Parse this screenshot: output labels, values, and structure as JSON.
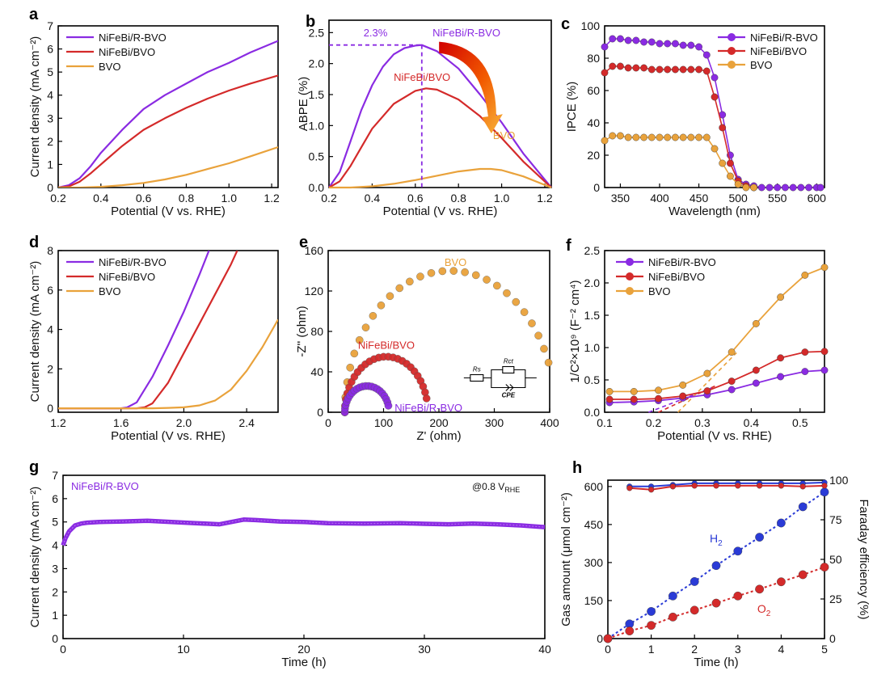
{
  "colors": {
    "purple": "#8a2be2",
    "red": "#d42a2a",
    "orange": "#e9a23b",
    "blue": "#2a3bd6"
  },
  "chart_data": [
    {
      "panel": "a",
      "type": "line",
      "xlabel": "Potential (V vs. RHE)",
      "ylabel": "Current density (mA cm⁻²)",
      "xlim": [
        0.2,
        1.23
      ],
      "ylim": [
        0,
        7
      ],
      "xticks": [
        0.2,
        0.4,
        0.6,
        0.8,
        1.0,
        1.2
      ],
      "yticks": [
        0,
        1,
        2,
        3,
        4,
        5,
        6,
        7
      ],
      "legend_position": "top-left",
      "series": [
        {
          "name": "NiFeBi/R-BVO",
          "color": "purple",
          "x": [
            0.2,
            0.25,
            0.3,
            0.35,
            0.4,
            0.5,
            0.6,
            0.7,
            0.8,
            0.9,
            1.0,
            1.1,
            1.23
          ],
          "y": [
            0,
            0.1,
            0.4,
            0.9,
            1.5,
            2.5,
            3.4,
            4.0,
            4.5,
            5.0,
            5.4,
            5.85,
            6.35
          ]
        },
        {
          "name": "NiFeBi/BVO",
          "color": "red",
          "x": [
            0.2,
            0.25,
            0.3,
            0.35,
            0.4,
            0.5,
            0.6,
            0.7,
            0.8,
            0.9,
            1.0,
            1.1,
            1.23
          ],
          "y": [
            0,
            0.05,
            0.25,
            0.6,
            1.0,
            1.8,
            2.5,
            3.0,
            3.45,
            3.85,
            4.2,
            4.5,
            4.85
          ]
        },
        {
          "name": "BVO",
          "color": "orange",
          "x": [
            0.2,
            0.3,
            0.4,
            0.5,
            0.6,
            0.7,
            0.8,
            0.9,
            1.0,
            1.1,
            1.23
          ],
          "y": [
            0,
            0,
            0.03,
            0.1,
            0.2,
            0.35,
            0.55,
            0.8,
            1.05,
            1.35,
            1.75
          ]
        }
      ]
    },
    {
      "panel": "b",
      "type": "line",
      "xlabel": "Potential (V vs. RHE)",
      "ylabel": "ABPE (%)",
      "xlim": [
        0.2,
        1.23
      ],
      "ylim": [
        0,
        2.7
      ],
      "xticks": [
        0.2,
        0.4,
        0.6,
        0.8,
        1.0,
        1.2
      ],
      "yticks": [
        0.0,
        0.5,
        1.0,
        1.5,
        2.0,
        2.5
      ],
      "annotations": {
        "peak": "2.3%",
        "label_top": "NiFeBi/R-BVO",
        "label_mid": "NiFeBi/BVO",
        "label_low": "BVO"
      },
      "peak_point": {
        "x": 0.63,
        "y": 2.3
      },
      "series": [
        {
          "name": "NiFeBi/R-BVO",
          "color": "purple",
          "x": [
            0.2,
            0.25,
            0.3,
            0.35,
            0.4,
            0.45,
            0.5,
            0.55,
            0.6,
            0.63,
            0.7,
            0.8,
            0.9,
            1.0,
            1.1,
            1.23
          ],
          "y": [
            0,
            0.25,
            0.75,
            1.25,
            1.65,
            1.95,
            2.15,
            2.25,
            2.29,
            2.3,
            2.2,
            1.92,
            1.5,
            1.05,
            0.55,
            0
          ]
        },
        {
          "name": "NiFeBi/BVO",
          "color": "red",
          "x": [
            0.2,
            0.25,
            0.3,
            0.35,
            0.4,
            0.5,
            0.6,
            0.65,
            0.7,
            0.8,
            0.9,
            1.0,
            1.1,
            1.23
          ],
          "y": [
            0,
            0.1,
            0.35,
            0.65,
            0.95,
            1.35,
            1.56,
            1.6,
            1.58,
            1.42,
            1.15,
            0.8,
            0.42,
            0
          ]
        },
        {
          "name": "BVO",
          "color": "orange",
          "x": [
            0.2,
            0.3,
            0.4,
            0.5,
            0.6,
            0.7,
            0.8,
            0.9,
            0.95,
            1.0,
            1.1,
            1.23
          ],
          "y": [
            0,
            0,
            0.02,
            0.06,
            0.12,
            0.19,
            0.26,
            0.3,
            0.3,
            0.28,
            0.18,
            0
          ]
        }
      ]
    },
    {
      "panel": "c",
      "type": "line",
      "xlabel": "Wavelength (nm)",
      "ylabel": "IPCE (%)",
      "xlim": [
        330,
        610
      ],
      "ylim": [
        0,
        100
      ],
      "xticks": [
        350,
        400,
        450,
        500,
        550,
        600
      ],
      "yticks": [
        0,
        20,
        40,
        60,
        80,
        100
      ],
      "legend_position": "top-right",
      "series": [
        {
          "name": "NiFeBi/R-BVO",
          "color": "purple",
          "markers": true,
          "x": [
            330,
            340,
            350,
            360,
            370,
            380,
            390,
            400,
            410,
            420,
            430,
            440,
            450,
            460,
            470,
            480,
            490,
            500,
            510,
            520,
            530,
            540,
            550,
            560,
            570,
            580,
            590,
            600,
            605
          ],
          "y": [
            87,
            92,
            92,
            91,
            91,
            90,
            90,
            89,
            89,
            89,
            88,
            88,
            87,
            82,
            68,
            45,
            20,
            5,
            2,
            1,
            0,
            0,
            0,
            0,
            0,
            0,
            0,
            0,
            0
          ]
        },
        {
          "name": "NiFeBi/BVO",
          "color": "red",
          "markers": true,
          "x": [
            330,
            340,
            350,
            360,
            370,
            380,
            390,
            400,
            410,
            420,
            430,
            440,
            450,
            460,
            470,
            480,
            490,
            500,
            510,
            520
          ],
          "y": [
            71,
            75,
            75,
            74,
            74,
            74,
            73,
            73,
            73,
            73,
            73,
            73,
            73,
            72,
            56,
            37,
            15,
            4,
            1,
            0
          ]
        },
        {
          "name": "BVO",
          "color": "orange",
          "markers": true,
          "x": [
            330,
            340,
            350,
            360,
            370,
            380,
            390,
            400,
            410,
            420,
            430,
            440,
            450,
            460,
            470,
            480,
            490,
            500,
            510,
            520
          ],
          "y": [
            29,
            32,
            32,
            31,
            31,
            31,
            31,
            31,
            31,
            31,
            31,
            31,
            31,
            31,
            24,
            15,
            7,
            2,
            0,
            0
          ]
        }
      ]
    },
    {
      "panel": "d",
      "type": "line",
      "xlabel": "Potential (V vs. RHE)",
      "ylabel": "Current density (mA cm⁻²)",
      "xlim": [
        1.2,
        2.6
      ],
      "ylim": [
        -0.2,
        8
      ],
      "xticks": [
        1.2,
        1.6,
        2.0,
        2.4
      ],
      "yticks": [
        0,
        2,
        4,
        6,
        8
      ],
      "legend_position": "top-left",
      "series": [
        {
          "name": "NiFeBi/R-BVO",
          "color": "purple",
          "x": [
            1.2,
            1.6,
            1.64,
            1.7,
            1.8,
            1.9,
            2.0,
            2.1,
            2.16
          ],
          "y": [
            0,
            0,
            0.05,
            0.3,
            1.6,
            3.2,
            4.9,
            6.8,
            8
          ]
        },
        {
          "name": "NiFeBi/BVO",
          "color": "red",
          "x": [
            1.2,
            1.7,
            1.75,
            1.8,
            1.9,
            2.0,
            2.1,
            2.2,
            2.3,
            2.34
          ],
          "y": [
            0,
            0,
            0.05,
            0.25,
            1.3,
            2.8,
            4.3,
            5.8,
            7.3,
            8
          ]
        },
        {
          "name": "BVO",
          "color": "orange",
          "x": [
            1.2,
            1.8,
            1.9,
            2.0,
            2.1,
            2.2,
            2.3,
            2.4,
            2.5,
            2.6
          ],
          "y": [
            0,
            0,
            0.02,
            0.05,
            0.15,
            0.4,
            0.95,
            1.9,
            3.1,
            4.5
          ]
        }
      ]
    },
    {
      "panel": "e",
      "type": "scatter",
      "xlabel": "Z' (ohm)",
      "ylabel": "-Z'' (ohm)",
      "xlim": [
        0,
        400
      ],
      "ylim": [
        0,
        160
      ],
      "xticks": [
        0,
        100,
        200,
        300,
        400
      ],
      "yticks": [
        0,
        40,
        80,
        120,
        160
      ],
      "annotations": {
        "label_bvo": "BVO",
        "label_nifebi": "NiFeBi/BVO",
        "label_r": "NiFeBi/R-BVO",
        "circuit_rs": "Rs",
        "circuit_rct": "Rct",
        "circuit_cpe": "CPE"
      },
      "series": [
        {
          "name": "BVO",
          "color": "orange",
          "shape": "arc",
          "z_start": 30,
          "z_end": 410,
          "center": 220,
          "height": 140,
          "points": 28
        },
        {
          "name": "NiFeBi/BVO",
          "color": "red",
          "shape": "arc",
          "z_start": 30,
          "z_end": 180,
          "center": 105,
          "height": 55,
          "points": 26
        },
        {
          "name": "NiFeBi/R-BVO",
          "color": "purple",
          "shape": "arc",
          "z_start": 30,
          "z_end": 110,
          "center": 70,
          "height": 26,
          "points": 22
        }
      ]
    },
    {
      "panel": "f",
      "type": "line",
      "xlabel": "Potential (V vs. RHE)",
      "ylabel": "1/C²×10⁹ (F⁻² cm⁴)",
      "xlim": [
        0.1,
        0.55
      ],
      "ylim": [
        0,
        2.5
      ],
      "xticks": [
        0.1,
        0.2,
        0.3,
        0.4,
        0.5
      ],
      "yticks": [
        0.0,
        0.5,
        1.0,
        1.5,
        2.0,
        2.5
      ],
      "legend_position": "top-left",
      "series": [
        {
          "name": "NiFeBi/R-BVO",
          "color": "purple",
          "markers": true,
          "x": [
            0.11,
            0.16,
            0.21,
            0.26,
            0.31,
            0.36,
            0.41,
            0.46,
            0.51,
            0.55
          ],
          "y": [
            0.15,
            0.16,
            0.18,
            0.22,
            0.27,
            0.35,
            0.45,
            0.55,
            0.63,
            0.65
          ]
        },
        {
          "name": "NiFeBi/BVO",
          "color": "red",
          "markers": true,
          "x": [
            0.11,
            0.16,
            0.21,
            0.26,
            0.31,
            0.36,
            0.41,
            0.46,
            0.51,
            0.55
          ],
          "y": [
            0.2,
            0.2,
            0.21,
            0.25,
            0.33,
            0.48,
            0.65,
            0.84,
            0.93,
            0.94
          ]
        },
        {
          "name": "BVO",
          "color": "orange",
          "markers": true,
          "x": [
            0.11,
            0.16,
            0.21,
            0.26,
            0.31,
            0.36,
            0.41,
            0.46,
            0.51,
            0.55
          ],
          "y": [
            0.32,
            0.32,
            0.34,
            0.42,
            0.6,
            0.93,
            1.37,
            1.78,
            2.12,
            2.24
          ]
        }
      ],
      "fit_lines": [
        {
          "color": "purple",
          "x": [
            0.19,
            0.32
          ],
          "y": [
            0,
            0.38
          ]
        },
        {
          "color": "red",
          "x": [
            0.21,
            0.33
          ],
          "y": [
            0,
            0.42
          ]
        },
        {
          "color": "orange",
          "x": [
            0.25,
            0.37
          ],
          "y": [
            0,
            0.92
          ]
        }
      ]
    },
    {
      "panel": "g",
      "type": "line",
      "xlabel": "Time (h)",
      "ylabel": "Current density (mA cm⁻²)",
      "xlim": [
        0,
        40
      ],
      "ylim": [
        0,
        7
      ],
      "xticks": [
        0,
        10,
        20,
        30,
        40
      ],
      "yticks": [
        0,
        1,
        2,
        3,
        4,
        5,
        6,
        7
      ],
      "annotations": {
        "series_label": "NiFeBi/R-BVO",
        "condition": "@0.8 V",
        "condition_sub": "RHE"
      },
      "series": [
        {
          "name": "NiFeBi/R-BVO",
          "color": "purple",
          "x": [
            0,
            0.2,
            0.5,
            1,
            1.5,
            2,
            3,
            5,
            7,
            9,
            11,
            13,
            14,
            15,
            16,
            18,
            20,
            22,
            25,
            28,
            30,
            32,
            34,
            36,
            38,
            40
          ],
          "y": [
            4.0,
            4.3,
            4.6,
            4.85,
            4.93,
            4.97,
            5.0,
            5.02,
            5.05,
            5.0,
            4.95,
            4.9,
            5.0,
            5.1,
            5.08,
            5.02,
            5.0,
            4.95,
            4.93,
            4.95,
            4.92,
            4.9,
            4.93,
            4.9,
            4.85,
            4.78
          ]
        }
      ]
    },
    {
      "panel": "h",
      "type": "scatter",
      "xlabel": "Time (h)",
      "ylabel": "Gas amount (μmol cm⁻²)",
      "ylabel_right": "Faraday efficiency (%)",
      "xlim": [
        0,
        5
      ],
      "ylim": [
        0,
        625
      ],
      "ylim_right": [
        0,
        100
      ],
      "xticks": [
        0,
        1,
        2,
        3,
        4,
        5
      ],
      "yticks": [
        0,
        150,
        300,
        450,
        600
      ],
      "yticks_right": [
        0,
        25,
        50,
        75,
        100
      ],
      "annotations": {
        "h2_label": "H",
        "h2_sub": "2",
        "o2_label": "O",
        "o2_sub": "2"
      },
      "series": [
        {
          "name": "H2",
          "color": "blue",
          "x": [
            0,
            0.5,
            1,
            1.5,
            2,
            2.5,
            3,
            3.5,
            4,
            4.5,
            5
          ],
          "y": [
            0,
            58,
            107,
            168,
            225,
            288,
            345,
            400,
            456,
            520,
            578
          ]
        },
        {
          "name": "O2",
          "color": "red",
          "x": [
            0,
            0.5,
            1,
            1.5,
            2,
            2.5,
            3,
            3.5,
            4,
            4.5,
            5
          ],
          "y": [
            0,
            30,
            52,
            85,
            112,
            140,
            168,
            195,
            224,
            252,
            282
          ]
        },
        {
          "name": "FE H2",
          "color": "blue",
          "axis": "right",
          "x": [
            0.5,
            1,
            1.5,
            2,
            2.5,
            3,
            3.5,
            4,
            4.5,
            5
          ],
          "y": [
            96,
            96,
            97,
            98,
            98,
            98,
            98,
            98,
            98,
            98.5
          ]
        },
        {
          "name": "FE O2",
          "color": "red",
          "axis": "right",
          "x": [
            0.5,
            1,
            1.5,
            2,
            2.5,
            3,
            3.5,
            4,
            4.5,
            5
          ],
          "y": [
            95,
            94,
            96,
            96.5,
            96.5,
            96.5,
            96.5,
            96.5,
            96,
            96.5
          ]
        }
      ]
    }
  ]
}
